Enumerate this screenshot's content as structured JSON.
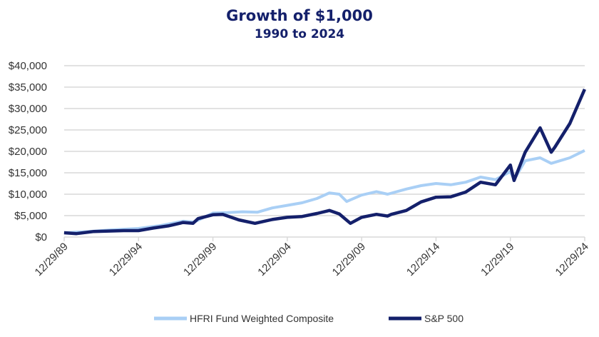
{
  "chart_data": {
    "type": "line",
    "title": "Growth of $1,000",
    "subtitle": "1990 to 2024",
    "xlabel": "",
    "ylabel": "",
    "ylim": [
      0,
      40000
    ],
    "yticks": [
      "$0",
      "$5,000",
      "$10,000",
      "$15,000",
      "$20,000",
      "$25,000",
      "$30,000",
      "$35,000",
      "$40,000"
    ],
    "xlim": [
      "1989-12-29",
      "2024-12-29"
    ],
    "xticks": [
      "12/29/89",
      "12/29/94",
      "12/29/99",
      "12/29/04",
      "12/29/09",
      "12/29/14",
      "12/29/19",
      "12/29/24"
    ],
    "grid": true,
    "legend_placement": "bottom",
    "series": [
      {
        "name": "HFRI Fund Weighted Composite",
        "color": "#a9cff5",
        "points": [
          [
            "1989-12",
            1000
          ],
          [
            "1991-06",
            1250
          ],
          [
            "1993-01",
            1650
          ],
          [
            "1994-12",
            2000
          ],
          [
            "1996-06",
            2700
          ],
          [
            "1997-12",
            3700
          ],
          [
            "1998-09",
            3500
          ],
          [
            "1999-12",
            5600
          ],
          [
            "2000-12",
            5700
          ],
          [
            "2001-12",
            5900
          ],
          [
            "2002-12",
            5800
          ],
          [
            "2003-12",
            6800
          ],
          [
            "2004-12",
            7400
          ],
          [
            "2005-12",
            8000
          ],
          [
            "2006-12",
            9000
          ],
          [
            "2007-10",
            10300
          ],
          [
            "2008-06",
            10000
          ],
          [
            "2008-12",
            8300
          ],
          [
            "2009-12",
            9800
          ],
          [
            "2010-12",
            10600
          ],
          [
            "2011-09",
            10000
          ],
          [
            "2012-12",
            11200
          ],
          [
            "2013-12",
            12000
          ],
          [
            "2014-12",
            12500
          ],
          [
            "2015-12",
            12200
          ],
          [
            "2016-12",
            12800
          ],
          [
            "2017-12",
            14000
          ],
          [
            "2018-12",
            13400
          ],
          [
            "2019-12",
            15300
          ],
          [
            "2020-03",
            13400
          ],
          [
            "2020-12",
            17800
          ],
          [
            "2021-12",
            18500
          ],
          [
            "2022-09",
            17200
          ],
          [
            "2023-12",
            18500
          ],
          [
            "2024-12",
            20200
          ]
        ]
      },
      {
        "name": "S&P 500",
        "color": "#14206b",
        "points": [
          [
            "1989-12",
            1000
          ],
          [
            "1990-10",
            800
          ],
          [
            "1991-12",
            1300
          ],
          [
            "1993-12",
            1500
          ],
          [
            "1994-12",
            1500
          ],
          [
            "1995-12",
            2100
          ],
          [
            "1996-12",
            2600
          ],
          [
            "1997-12",
            3400
          ],
          [
            "1998-08",
            3200
          ],
          [
            "1998-12",
            4300
          ],
          [
            "1999-12",
            5200
          ],
          [
            "2000-08",
            5300
          ],
          [
            "2001-09",
            4000
          ],
          [
            "2002-10",
            3200
          ],
          [
            "2003-12",
            4100
          ],
          [
            "2004-12",
            4600
          ],
          [
            "2005-12",
            4800
          ],
          [
            "2006-12",
            5500
          ],
          [
            "2007-10",
            6200
          ],
          [
            "2008-06",
            5400
          ],
          [
            "2009-03",
            3200
          ],
          [
            "2009-12",
            4600
          ],
          [
            "2010-12",
            5300
          ],
          [
            "2011-09",
            4900
          ],
          [
            "2011-12",
            5300
          ],
          [
            "2012-12",
            6200
          ],
          [
            "2013-12",
            8200
          ],
          [
            "2014-12",
            9300
          ],
          [
            "2015-12",
            9400
          ],
          [
            "2016-12",
            10500
          ],
          [
            "2017-12",
            12800
          ],
          [
            "2018-12",
            12200
          ],
          [
            "2019-12",
            16800
          ],
          [
            "2020-03",
            13200
          ],
          [
            "2020-12",
            19800
          ],
          [
            "2021-12",
            25500
          ],
          [
            "2022-09",
            19800
          ],
          [
            "2022-12",
            21000
          ],
          [
            "2023-12",
            26500
          ],
          [
            "2024-12",
            34500
          ]
        ]
      }
    ]
  }
}
